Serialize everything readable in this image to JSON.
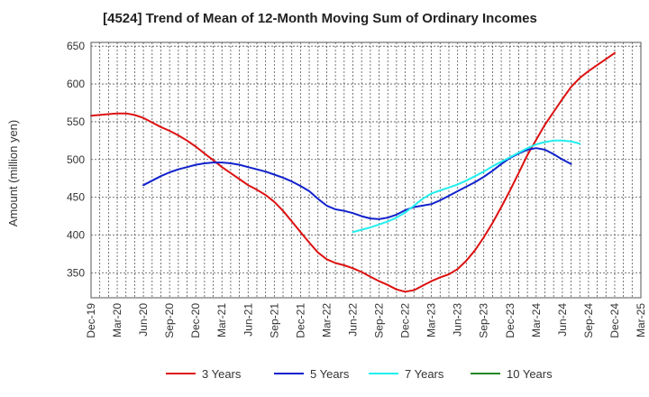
{
  "chart_data": {
    "type": "line",
    "title": "[4524]  Trend of Mean of 12-Month Moving Sum of Ordinary Incomes",
    "xlabel": "",
    "ylabel": "Amount (million yen)",
    "ylim": [
      317,
      655
    ],
    "yticks": [
      350,
      400,
      450,
      500,
      550,
      600,
      650
    ],
    "x_tick_labels": [
      "Dec-19",
      "Mar-20",
      "Jun-20",
      "Sep-20",
      "Dec-20",
      "Mar-21",
      "Jun-21",
      "Sep-21",
      "Dec-21",
      "Mar-22",
      "Jun-22",
      "Sep-22",
      "Dec-22",
      "Mar-23",
      "Jun-23",
      "Sep-23",
      "Dec-23",
      "Mar-24",
      "Jun-24",
      "Sep-24",
      "Dec-24",
      "Mar-25"
    ],
    "x_index_range": [
      0,
      63
    ],
    "grid": true,
    "legend_position": "bottom",
    "series": [
      {
        "name": "3 Years",
        "color": "#dd1111",
        "start_index": 0,
        "values": [
          558,
          559,
          560,
          561,
          561,
          559,
          555,
          549,
          543,
          538,
          532,
          525,
          517,
          508,
          499,
          490,
          482,
          474,
          466,
          460,
          453,
          444,
          432,
          418,
          404,
          390,
          377,
          368,
          363,
          360,
          356,
          351,
          345,
          339,
          334,
          328,
          325,
          327,
          333,
          339,
          344,
          348,
          355,
          366,
          380,
          397,
          416,
          437,
          459,
          482,
          506,
          526,
          546,
          563,
          580,
          596,
          608,
          617,
          625,
          633,
          641
        ]
      },
      {
        "name": "5 Years",
        "color": "#1122cc",
        "start_index": 6,
        "values": [
          466,
          472,
          478,
          483,
          487,
          490,
          493,
          495,
          496,
          496,
          495,
          493,
          490,
          487,
          484,
          480,
          476,
          471,
          465,
          458,
          448,
          439,
          434,
          432,
          429,
          425,
          422,
          421,
          423,
          427,
          433,
          437,
          439,
          441,
          446,
          452,
          458,
          464,
          470,
          477,
          485,
          494,
          502,
          508,
          513,
          515,
          513,
          507,
          500,
          494
        ]
      },
      {
        "name": "7 Years",
        "color": "#22eeee",
        "start_index": 30,
        "values": [
          404,
          407,
          410,
          414,
          418,
          423,
          430,
          439,
          448,
          455,
          459,
          463,
          467,
          472,
          478,
          484,
          491,
          497,
          503,
          509,
          515,
          520,
          523,
          525,
          525,
          524,
          521
        ]
      },
      {
        "name": "10 Years",
        "color": "#228822",
        "start_index": 0,
        "values": []
      }
    ]
  }
}
